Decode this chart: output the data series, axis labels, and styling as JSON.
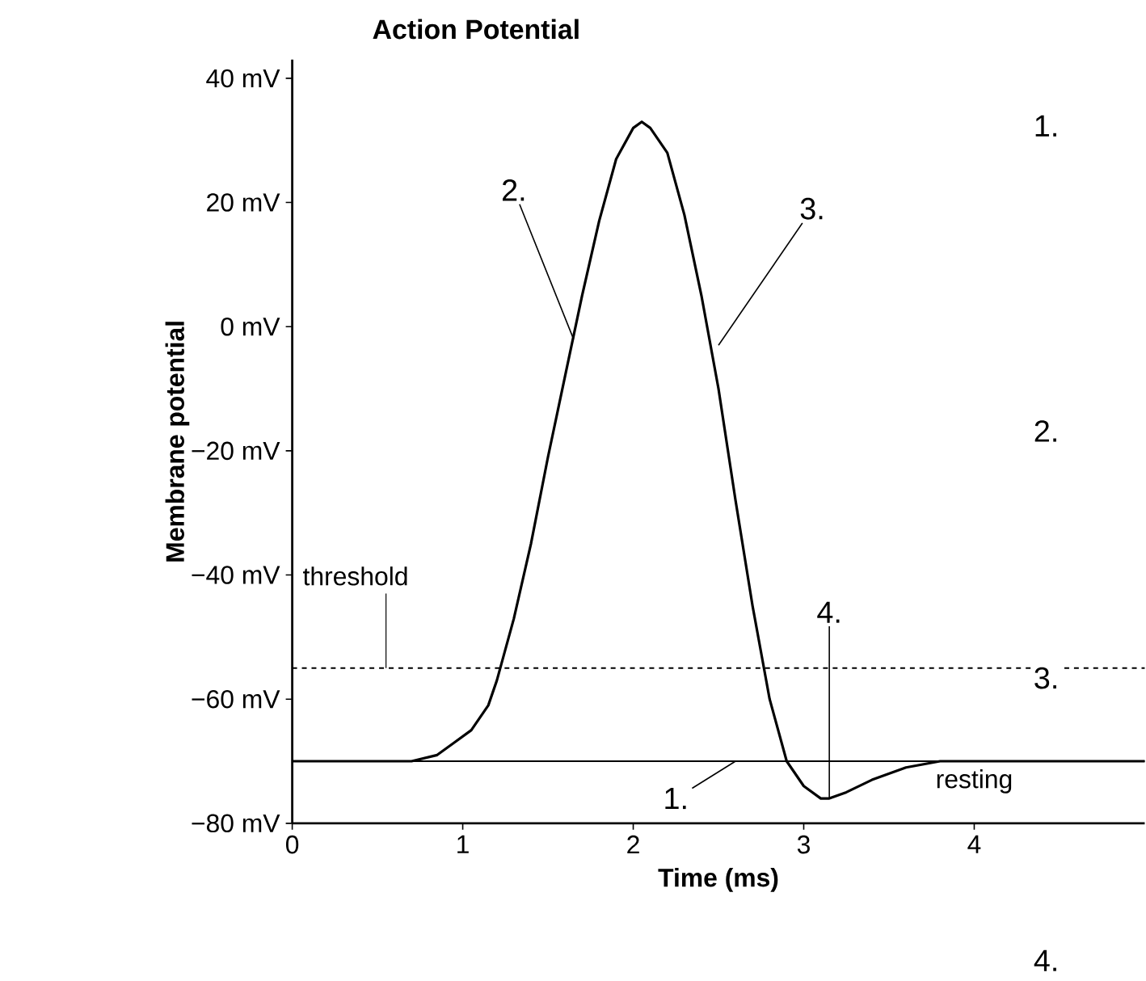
{
  "chart_data": {
    "type": "line",
    "title": "Action Potential",
    "xlabel": "Time (ms)",
    "ylabel": "Membrane potential",
    "x": [
      0,
      0.4,
      0.7,
      0.85,
      0.95,
      1.05,
      1.15,
      1.2,
      1.3,
      1.4,
      1.5,
      1.6,
      1.7,
      1.8,
      1.9,
      2.0,
      2.05,
      2.1,
      2.2,
      2.3,
      2.4,
      2.5,
      2.6,
      2.7,
      2.8,
      2.9,
      3.0,
      3.1,
      3.15,
      3.25,
      3.4,
      3.6,
      3.8,
      4.0,
      4.5,
      5.0
    ],
    "series": [
      {
        "color": "#000000",
        "values": [
          -70,
          -70,
          -70,
          -69,
          -67,
          -65,
          -61,
          -57,
          -47,
          -35,
          -21,
          -8,
          5,
          17,
          27,
          32,
          33,
          32,
          28,
          18,
          5,
          -10,
          -28,
          -45,
          -60,
          -70,
          -74,
          -76,
          -76,
          -75,
          -73,
          -71,
          -70,
          -70,
          -70,
          -70
        ]
      }
    ],
    "xlim": [
      0,
      5
    ],
    "ylim": [
      -80,
      43
    ],
    "xticks": [
      0,
      1,
      2,
      3,
      4
    ],
    "yticks": [
      {
        "value": -80,
        "label": "−80 mV"
      },
      {
        "value": -60,
        "label": "−60 mV"
      },
      {
        "value": -40,
        "label": "−40 mV"
      },
      {
        "value": -20,
        "label": "−20 mV"
      },
      {
        "value": 0,
        "label": "0 mV"
      },
      {
        "value": 20,
        "label": "20 mV"
      },
      {
        "value": 40,
        "label": "40 mV"
      }
    ],
    "ref_lines": [
      {
        "axis": "y",
        "value": -55,
        "label": "threshold",
        "line_style": "dashed",
        "color": "#000000"
      },
      {
        "axis": "y",
        "value": -70,
        "label": "resting",
        "line_style": "solid",
        "color": "#000000"
      }
    ],
    "annotations": [
      {
        "text": "2.",
        "x": 1.65,
        "y": -2
      },
      {
        "text": "3.",
        "x": 2.5,
        "y": -3
      },
      {
        "text": "1.",
        "x": 2.6,
        "y": -70
      },
      {
        "text": "4.",
        "x": 3.15,
        "y": -76
      },
      "1.",
      "2.",
      "3.",
      "4."
    ],
    "grid": false,
    "marker": "none",
    "line_style": "solid"
  }
}
